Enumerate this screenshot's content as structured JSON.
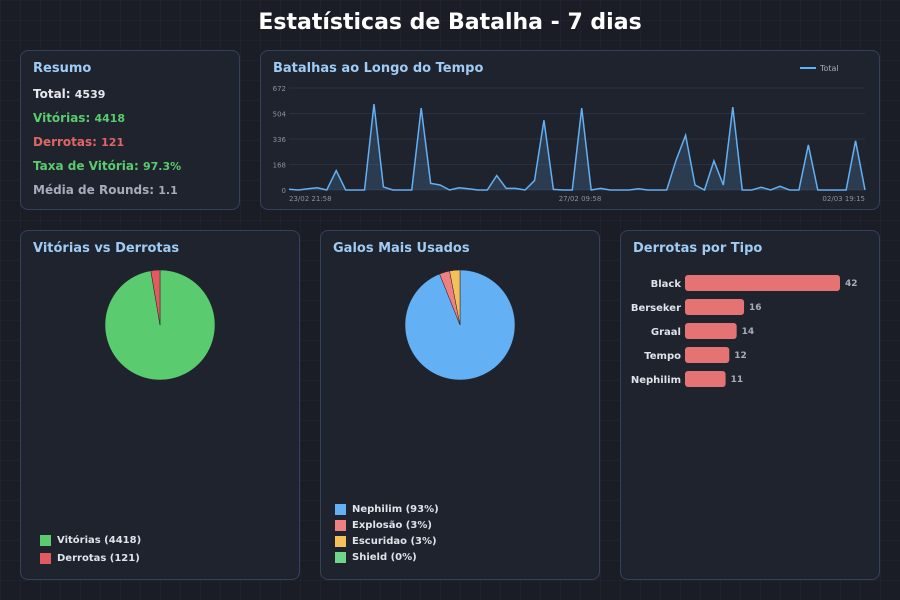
{
  "title": "Estatísticas de Batalha - 7 dias",
  "summary": {
    "title": "Resumo",
    "items": [
      {
        "label": "Total:",
        "value": "4539",
        "color": "#e6e8ee"
      },
      {
        "label": "Vitórias:",
        "value": "4418",
        "color": "#5acb6e"
      },
      {
        "label": "Derrotas:",
        "value": "121",
        "color": "#e06666"
      },
      {
        "label": "Taxa de Vitória:",
        "value": "97.3%",
        "color": "#5acb6e"
      },
      {
        "label": "Média de Rounds:",
        "value": "1.1",
        "color": "#a7acbb"
      }
    ]
  },
  "chart_data": [
    {
      "type": "area",
      "title": "Batalhas ao Longo do Tempo",
      "legend": "top-right",
      "series": [
        {
          "name": "Total",
          "color": "#63b0f4",
          "values": [
            5,
            0,
            8,
            15,
            0,
            128,
            0,
            0,
            0,
            566,
            20,
            0,
            0,
            0,
            540,
            44,
            33,
            0,
            15,
            8,
            0,
            0,
            95,
            11,
            11,
            0,
            62,
            460,
            4,
            0,
            0,
            540,
            0,
            11,
            0,
            0,
            0,
            8,
            0,
            0,
            0,
            198,
            361,
            33,
            0,
            192,
            33,
            546,
            0,
            0,
            18,
            0,
            24,
            0,
            0,
            297,
            0,
            0,
            0,
            0,
            324,
            0
          ]
        }
      ],
      "x_tick_labels": [
        "23/02 21:58",
        "27/02 09:58",
        "02/03 19:15"
      ],
      "y_ticks": [
        0,
        168,
        336,
        504,
        672
      ],
      "ylim": [
        0,
        672
      ],
      "grid": true
    },
    {
      "type": "pie",
      "title": "Vitórias vs Derrotas",
      "legend": "bottom-left",
      "slices": [
        {
          "label": "Vitórias (4418)",
          "value": 4418,
          "color": "#5acb6e"
        },
        {
          "label": "Derrotas (121)",
          "value": 121,
          "color": "#e05a5f"
        }
      ]
    },
    {
      "type": "pie",
      "title": "Galos Mais Usados",
      "legend": "bottom-left",
      "slices": [
        {
          "label": "Nephilim (93%)",
          "value": 93,
          "color": "#63b0f4"
        },
        {
          "label": "Explosão (3%)",
          "value": 3,
          "color": "#f07f7f"
        },
        {
          "label": "Escuridao (3%)",
          "value": 3,
          "color": "#f5c05a"
        },
        {
          "label": "Shield (0%)",
          "value": 0,
          "color": "#6fd58a"
        }
      ]
    },
    {
      "type": "bar",
      "orientation": "horizontal",
      "title": "Derrotas por Tipo",
      "categories": [
        "Black",
        "Berseker",
        "Graal",
        "Tempo",
        "Nephilim"
      ],
      "values": [
        42,
        16,
        14,
        12,
        11
      ],
      "color": "#e57373"
    }
  ]
}
